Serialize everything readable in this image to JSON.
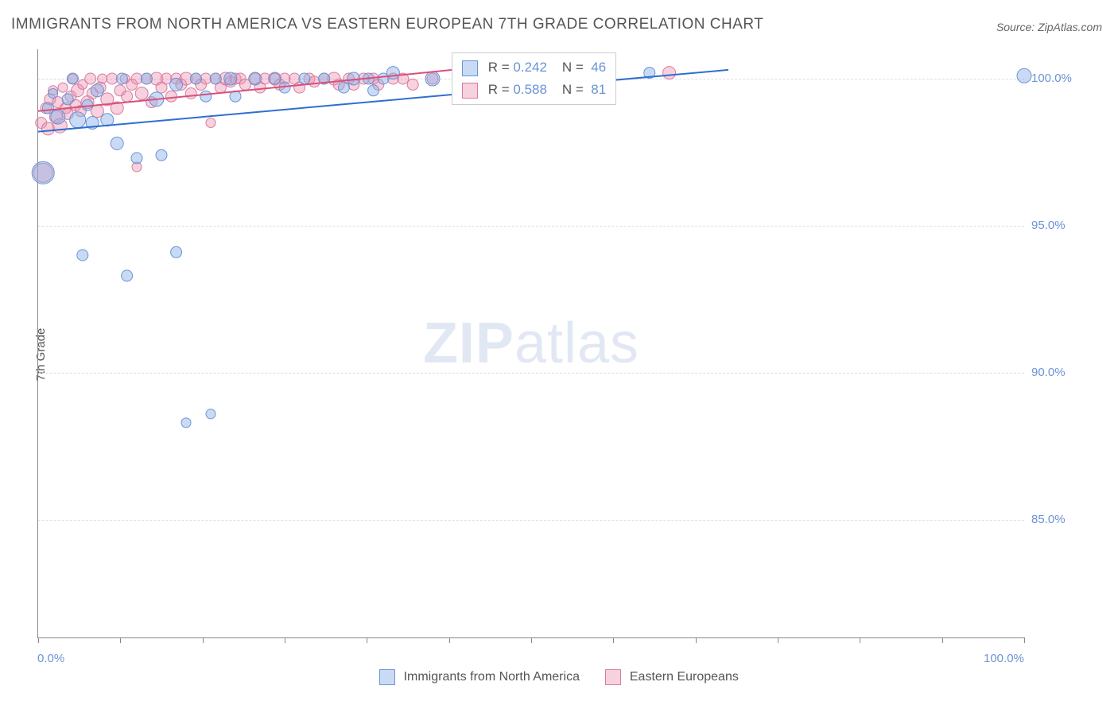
{
  "title": "IMMIGRANTS FROM NORTH AMERICA VS EASTERN EUROPEAN 7TH GRADE CORRELATION CHART",
  "source": "Source: ZipAtlas.com",
  "ylabel": "7th Grade",
  "watermark_zip": "ZIP",
  "watermark_atlas": "atlas",
  "chart": {
    "type": "scatter",
    "xlim": [
      0,
      100
    ],
    "ylim": [
      81,
      101
    ],
    "y_gridlines": [
      85,
      90,
      95,
      100
    ],
    "y_tick_labels": [
      "85.0%",
      "90.0%",
      "95.0%",
      "100.0%"
    ],
    "x_ticks": [
      0,
      8.33,
      16.67,
      25,
      33.33,
      41.67,
      50,
      58.33,
      66.67,
      75,
      83.33,
      91.67,
      100
    ],
    "x_tick_labels_shown": {
      "0": "0.0%",
      "100": "100.0%"
    },
    "background_color": "#ffffff",
    "grid_color": "#dddddd",
    "axis_color": "#888888",
    "tick_label_color": "#6b93d6",
    "label_fontsize": 15,
    "title_fontsize": 19,
    "title_color": "#555555"
  },
  "series": {
    "north_america": {
      "label": "Immigrants from North America",
      "fill_color": "rgba(135,175,230,0.45)",
      "stroke_color": "#6b93d6",
      "line_color": "#2f6fd0",
      "R": "0.242",
      "N": "46",
      "trend": {
        "x1": 0,
        "y1": 98.2,
        "x2": 70,
        "y2": 100.3
      },
      "points": [
        {
          "x": 0.5,
          "y": 96.8,
          "r": 14
        },
        {
          "x": 1,
          "y": 99.0,
          "r": 7
        },
        {
          "x": 1.5,
          "y": 99.5,
          "r": 6
        },
        {
          "x": 2,
          "y": 98.7,
          "r": 9
        },
        {
          "x": 3,
          "y": 99.3,
          "r": 7
        },
        {
          "x": 3.5,
          "y": 100.0,
          "r": 7
        },
        {
          "x": 4,
          "y": 98.6,
          "r": 10
        },
        {
          "x": 4.5,
          "y": 94.0,
          "r": 7
        },
        {
          "x": 5,
          "y": 99.1,
          "r": 7
        },
        {
          "x": 5.5,
          "y": 98.5,
          "r": 8
        },
        {
          "x": 6,
          "y": 99.6,
          "r": 8
        },
        {
          "x": 7,
          "y": 98.6,
          "r": 8
        },
        {
          "x": 8,
          "y": 97.8,
          "r": 8
        },
        {
          "x": 8.5,
          "y": 100.0,
          "r": 7
        },
        {
          "x": 9,
          "y": 93.3,
          "r": 7
        },
        {
          "x": 10,
          "y": 97.3,
          "r": 7
        },
        {
          "x": 11,
          "y": 100.0,
          "r": 7
        },
        {
          "x": 12,
          "y": 99.3,
          "r": 9
        },
        {
          "x": 12.5,
          "y": 97.4,
          "r": 7
        },
        {
          "x": 14,
          "y": 94.1,
          "r": 7
        },
        {
          "x": 14,
          "y": 99.8,
          "r": 8
        },
        {
          "x": 15,
          "y": 88.3,
          "r": 6
        },
        {
          "x": 16,
          "y": 100.0,
          "r": 7
        },
        {
          "x": 17,
          "y": 99.4,
          "r": 7
        },
        {
          "x": 17.5,
          "y": 88.6,
          "r": 6
        },
        {
          "x": 18,
          "y": 100.0,
          "r": 7
        },
        {
          "x": 19.5,
          "y": 100.0,
          "r": 8
        },
        {
          "x": 20,
          "y": 99.4,
          "r": 7
        },
        {
          "x": 22,
          "y": 100.0,
          "r": 8
        },
        {
          "x": 24,
          "y": 100.0,
          "r": 7
        },
        {
          "x": 25,
          "y": 99.7,
          "r": 7
        },
        {
          "x": 27,
          "y": 100.0,
          "r": 7
        },
        {
          "x": 29,
          "y": 100.0,
          "r": 7
        },
        {
          "x": 31,
          "y": 99.7,
          "r": 7
        },
        {
          "x": 32,
          "y": 100.0,
          "r": 8
        },
        {
          "x": 33.5,
          "y": 100.0,
          "r": 7
        },
        {
          "x": 34,
          "y": 99.6,
          "r": 7
        },
        {
          "x": 35,
          "y": 100.0,
          "r": 7
        },
        {
          "x": 36,
          "y": 100.2,
          "r": 8
        },
        {
          "x": 40,
          "y": 100.0,
          "r": 9
        },
        {
          "x": 43,
          "y": 100.0,
          "r": 7
        },
        {
          "x": 47,
          "y": 100.0,
          "r": 7
        },
        {
          "x": 51,
          "y": 100.0,
          "r": 7
        },
        {
          "x": 54,
          "y": 100.0,
          "r": 7
        },
        {
          "x": 62,
          "y": 100.2,
          "r": 7
        },
        {
          "x": 100,
          "y": 100.1,
          "r": 9
        }
      ]
    },
    "eastern_european": {
      "label": "Eastern Europeans",
      "fill_color": "rgba(235,140,170,0.40)",
      "stroke_color": "#d87ca0",
      "line_color": "#d94f7a",
      "R": "0.588",
      "N": "81",
      "trend": {
        "x1": 0,
        "y1": 98.9,
        "x2": 42,
        "y2": 100.3
      },
      "points": [
        {
          "x": 0.3,
          "y": 98.5,
          "r": 7
        },
        {
          "x": 0.5,
          "y": 96.8,
          "r": 12
        },
        {
          "x": 0.8,
          "y": 99.0,
          "r": 7
        },
        {
          "x": 1,
          "y": 98.3,
          "r": 8
        },
        {
          "x": 1.2,
          "y": 99.3,
          "r": 7
        },
        {
          "x": 1.5,
          "y": 99.6,
          "r": 6
        },
        {
          "x": 1.8,
          "y": 98.7,
          "r": 8
        },
        {
          "x": 2,
          "y": 99.2,
          "r": 7
        },
        {
          "x": 2.2,
          "y": 98.4,
          "r": 9
        },
        {
          "x": 2.5,
          "y": 99.7,
          "r": 6
        },
        {
          "x": 2.8,
          "y": 99.0,
          "r": 7
        },
        {
          "x": 3,
          "y": 98.8,
          "r": 7
        },
        {
          "x": 3.3,
          "y": 99.4,
          "r": 7
        },
        {
          "x": 3.5,
          "y": 100.0,
          "r": 6
        },
        {
          "x": 3.8,
          "y": 99.1,
          "r": 7
        },
        {
          "x": 4,
          "y": 99.6,
          "r": 8
        },
        {
          "x": 4.3,
          "y": 98.9,
          "r": 7
        },
        {
          "x": 4.5,
          "y": 99.8,
          "r": 6
        },
        {
          "x": 5,
          "y": 99.2,
          "r": 8
        },
        {
          "x": 5.3,
          "y": 100.0,
          "r": 7
        },
        {
          "x": 5.5,
          "y": 99.5,
          "r": 7
        },
        {
          "x": 6,
          "y": 98.9,
          "r": 8
        },
        {
          "x": 6.3,
          "y": 99.7,
          "r": 7
        },
        {
          "x": 6.5,
          "y": 100.0,
          "r": 6
        },
        {
          "x": 7,
          "y": 99.3,
          "r": 8
        },
        {
          "x": 7.5,
          "y": 100.0,
          "r": 7
        },
        {
          "x": 8,
          "y": 99.0,
          "r": 8
        },
        {
          "x": 8.3,
          "y": 99.6,
          "r": 7
        },
        {
          "x": 8.8,
          "y": 100.0,
          "r": 6
        },
        {
          "x": 9,
          "y": 99.4,
          "r": 7
        },
        {
          "x": 9.5,
          "y": 99.8,
          "r": 7
        },
        {
          "x": 10,
          "y": 97.0,
          "r": 6
        },
        {
          "x": 10,
          "y": 100.0,
          "r": 7
        },
        {
          "x": 10.5,
          "y": 99.5,
          "r": 8
        },
        {
          "x": 11,
          "y": 100.0,
          "r": 7
        },
        {
          "x": 11.5,
          "y": 99.2,
          "r": 7
        },
        {
          "x": 12,
          "y": 100.0,
          "r": 8
        },
        {
          "x": 12.5,
          "y": 99.7,
          "r": 7
        },
        {
          "x": 13,
          "y": 100.0,
          "r": 7
        },
        {
          "x": 13.5,
          "y": 99.4,
          "r": 7
        },
        {
          "x": 14,
          "y": 100.0,
          "r": 7
        },
        {
          "x": 14.5,
          "y": 99.8,
          "r": 7
        },
        {
          "x": 15,
          "y": 100.0,
          "r": 8
        },
        {
          "x": 15.5,
          "y": 99.5,
          "r": 7
        },
        {
          "x": 16,
          "y": 100.0,
          "r": 7
        },
        {
          "x": 16.5,
          "y": 99.8,
          "r": 7
        },
        {
          "x": 17,
          "y": 100.0,
          "r": 7
        },
        {
          "x": 17.5,
          "y": 98.5,
          "r": 6
        },
        {
          "x": 18,
          "y": 100.0,
          "r": 7
        },
        {
          "x": 18.5,
          "y": 99.7,
          "r": 7
        },
        {
          "x": 19,
          "y": 100.0,
          "r": 8
        },
        {
          "x": 19.5,
          "y": 99.9,
          "r": 7
        },
        {
          "x": 20,
          "y": 100.0,
          "r": 7
        },
        {
          "x": 20.5,
          "y": 100.0,
          "r": 7
        },
        {
          "x": 21,
          "y": 99.8,
          "r": 7
        },
        {
          "x": 22,
          "y": 100.0,
          "r": 7
        },
        {
          "x": 22.5,
          "y": 99.7,
          "r": 7
        },
        {
          "x": 23,
          "y": 100.0,
          "r": 7
        },
        {
          "x": 24,
          "y": 100.0,
          "r": 8
        },
        {
          "x": 24.5,
          "y": 99.8,
          "r": 7
        },
        {
          "x": 25,
          "y": 100.0,
          "r": 7
        },
        {
          "x": 26,
          "y": 100.0,
          "r": 7
        },
        {
          "x": 26.5,
          "y": 99.7,
          "r": 7
        },
        {
          "x": 27.5,
          "y": 100.0,
          "r": 7
        },
        {
          "x": 28,
          "y": 99.9,
          "r": 7
        },
        {
          "x": 29,
          "y": 100.0,
          "r": 7
        },
        {
          "x": 30,
          "y": 100.0,
          "r": 8
        },
        {
          "x": 30.5,
          "y": 99.8,
          "r": 7
        },
        {
          "x": 31.5,
          "y": 100.0,
          "r": 7
        },
        {
          "x": 32,
          "y": 99.8,
          "r": 7
        },
        {
          "x": 33,
          "y": 100.0,
          "r": 7
        },
        {
          "x": 34,
          "y": 100.0,
          "r": 7
        },
        {
          "x": 34.5,
          "y": 99.8,
          "r": 7
        },
        {
          "x": 36,
          "y": 100.0,
          "r": 7
        },
        {
          "x": 37,
          "y": 100.0,
          "r": 7
        },
        {
          "x": 38,
          "y": 99.8,
          "r": 7
        },
        {
          "x": 40,
          "y": 100.0,
          "r": 7
        },
        {
          "x": 44,
          "y": 100.0,
          "r": 6
        },
        {
          "x": 48,
          "y": 100.0,
          "r": 6
        },
        {
          "x": 55,
          "y": 100.0,
          "r": 6
        },
        {
          "x": 64,
          "y": 100.2,
          "r": 8
        }
      ]
    }
  },
  "stats_box": {
    "r_label": "R =",
    "n_label": "N ="
  },
  "legend": {
    "position": "bottom"
  }
}
